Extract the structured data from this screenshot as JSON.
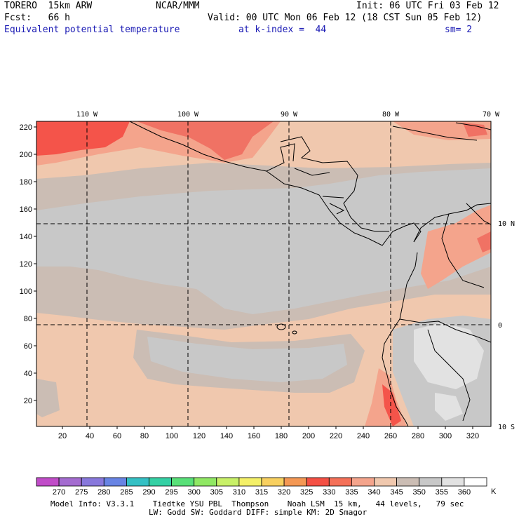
{
  "header": {
    "model": "TORERO  15km ARW",
    "center": "NCAR/MMM",
    "init": "Init: 06 UTC Fri 03 Feb 12",
    "fcst": "Fcst:   66 h",
    "valid": "Valid: 00 UTC Mon 06 Feb 12 (18 CST Sun 05 Feb 12)",
    "field": "Equivalent potential temperature",
    "level": "at k-index =  44",
    "smooth": "sm= 2"
  },
  "map": {
    "lon_labels": [
      "110 W",
      "100 W",
      "90 W",
      "80 W",
      "70 W"
    ],
    "lat_labels": [
      "10 N",
      "0",
      "10 S"
    ],
    "y_ticks": [
      "20",
      "40",
      "60",
      "80",
      "100",
      "120",
      "140",
      "160",
      "180",
      "200",
      "220"
    ],
    "x_ticks": [
      "20",
      "40",
      "60",
      "80",
      "100",
      "120",
      "140",
      "160",
      "180",
      "200",
      "220",
      "240",
      "260",
      "280",
      "300",
      "320"
    ],
    "colors": {
      "band_340_345": "#f0c8ae",
      "band_345_350": "#cbbdb4",
      "band_350_355": "#c8c8c8",
      "band_355_360": "#e2e2e2",
      "band_330_335": "#f07264",
      "band_335_340": "#f4a48c",
      "band_325_330": "#f4544a"
    }
  },
  "colorbar": {
    "labels": [
      "270",
      "275",
      "280",
      "285",
      "290",
      "295",
      "300",
      "305",
      "310",
      "315",
      "320",
      "325",
      "330",
      "335",
      "340",
      "345",
      "350",
      "355",
      "360"
    ],
    "unit": "K",
    "colors": [
      "#c04cc8",
      "#a46cd0",
      "#8878dc",
      "#6884e4",
      "#34c0c4",
      "#34d0a4",
      "#58e078",
      "#90e864",
      "#c8f068",
      "#f4f068",
      "#f8d060",
      "#f49854",
      "#f45044",
      "#f47058",
      "#f4a48c",
      "#f0c8ae",
      "#cbbdb4",
      "#c8c8c8",
      "#e2e2e2"
    ]
  },
  "footer": {
    "line1": "Model Info: V3.3.1    Tiedtke YSU PBL  Thompson    Noah LSM  15 km,   44 levels,   79 sec",
    "line2": "LW: Godd SW: Goddard DIFF: simple KM: 2D Smagor"
  }
}
